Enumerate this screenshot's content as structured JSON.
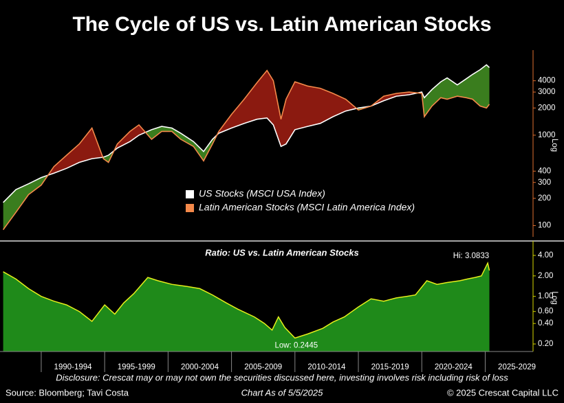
{
  "title": "The Cycle of US vs. Latin American Stocks",
  "chart_data": [
    {
      "type": "line",
      "x": [
        1987.0,
        1988,
        1989,
        1990,
        1991,
        1992,
        1993,
        1994,
        1994.9,
        1995.3,
        1996,
        1997,
        1997.7,
        1998.7,
        1999.5,
        2000.3,
        2001,
        2002,
        2002.8,
        2003.5,
        2004,
        2005,
        2006,
        2007,
        2007.8,
        2008.3,
        2008.9,
        2009.3,
        2010,
        2011,
        2012,
        2013,
        2014,
        2015,
        2016,
        2017,
        2018,
        2019,
        2020,
        2020.2,
        2020.8,
        2021.5,
        2022,
        2022.8,
        2023.5,
        2024,
        2024.6,
        2025.1,
        2025.33
      ],
      "series": [
        {
          "name": "US Stocks (MSCI USA Index)",
          "color": "#ffffff",
          "values": [
            180,
            250,
            290,
            340,
            380,
            430,
            500,
            550,
            570,
            600,
            720,
            850,
            1000,
            1150,
            1250,
            1200,
            1050,
            850,
            660,
            900,
            1050,
            1200,
            1350,
            1500,
            1550,
            1300,
            750,
            800,
            1150,
            1250,
            1350,
            1600,
            1850,
            2000,
            2100,
            2400,
            2700,
            2800,
            3000,
            2600,
            3200,
            3900,
            4300,
            3600,
            4200,
            4700,
            5300,
            6000,
            5600
          ]
        },
        {
          "name": "Latin American Stocks (MSCI Latin America Index)",
          "color": "#f4894a",
          "values": [
            90,
            140,
            220,
            280,
            450,
            600,
            800,
            1200,
            550,
            500,
            800,
            1100,
            1300,
            900,
            1100,
            1100,
            900,
            750,
            520,
            800,
            1100,
            1700,
            2500,
            3800,
            5200,
            4000,
            1500,
            2500,
            3900,
            3500,
            3300,
            2900,
            2500,
            1900,
            2100,
            2700,
            2900,
            3000,
            2900,
            1600,
            2100,
            2600,
            2500,
            2700,
            2600,
            2500,
            2100,
            2000,
            2200
          ]
        }
      ],
      "above_color": "#3a7d1e",
      "below_color": "#8b1a10",
      "xlim": [
        1986.75,
        2028.5
      ],
      "ylim": [
        75,
        8000
      ],
      "yticks": [
        100,
        200,
        300,
        400,
        1000,
        2000,
        3000,
        4000
      ],
      "log_scale": true,
      "y_scale_label": "Log",
      "axis_color": "#e07030"
    },
    {
      "type": "area",
      "title": "Ratio: US vs. Latin American Stocks",
      "x": [
        1987,
        1988,
        1989,
        1990,
        1991,
        1992,
        1993,
        1994,
        1995,
        1995.8,
        1996.5,
        1997.3,
        1998.4,
        1999.2,
        2000.3,
        2001.5,
        2002.5,
        2003.5,
        2004.6,
        2005.5,
        2006.8,
        2007.6,
        2008.2,
        2008.7,
        2009.2,
        2010,
        2011,
        2012.2,
        2013,
        2013.9,
        2015,
        2016,
        2017,
        2018,
        2018.8,
        2019.5,
        2020.4,
        2021.2,
        2022,
        2023,
        2023.6,
        2024.2,
        2024.7,
        2025.2,
        2025.33
      ],
      "values": [
        2.3,
        1.8,
        1.3,
        1.0,
        0.85,
        0.75,
        0.6,
        0.43,
        0.75,
        0.55,
        0.8,
        1.1,
        1.9,
        1.7,
        1.5,
        1.4,
        1.3,
        1.05,
        0.8,
        0.65,
        0.5,
        0.4,
        0.32,
        0.5,
        0.35,
        0.2445,
        0.28,
        0.34,
        0.42,
        0.5,
        0.7,
        0.92,
        0.85,
        0.95,
        1.0,
        1.05,
        1.7,
        1.5,
        1.6,
        1.7,
        1.8,
        1.9,
        2.0,
        3.0833,
        2.4
      ],
      "color": "#1f8a1a",
      "line_color": "#e6f01a",
      "xlim": [
        1986.75,
        2028.5
      ],
      "ylim": [
        0.155,
        5.8
      ],
      "yticks": [
        {
          "value": 4,
          "label": "4.00"
        },
        {
          "value": 2,
          "label": "2.00"
        },
        {
          "value": 1,
          "label": "1.00"
        },
        {
          "value": 0.6,
          "label": "0.60"
        },
        {
          "value": 0.4,
          "label": "0.40"
        },
        {
          "value": 0.2,
          "label": "0.20"
        }
      ],
      "xticks": [
        {
          "value": 1992.5,
          "label": "1990-1994"
        },
        {
          "value": 1997.5,
          "label": "1995-1999"
        },
        {
          "value": 2002.5,
          "label": "2000-2004"
        },
        {
          "value": 2007.5,
          "label": "2005-2009"
        },
        {
          "value": 2012.5,
          "label": "2010-2014"
        },
        {
          "value": 2017.5,
          "label": "2015-2019"
        },
        {
          "value": 2022.5,
          "label": "2020-2024"
        },
        {
          "value": 2027.5,
          "label": "2025-2029"
        }
      ],
      "log_scale": true,
      "y_scale_label": "Log",
      "axis_color": "#d8d800",
      "annotations": [
        "Hi: 3.0833",
        "Low: 0.2445"
      ]
    }
  ],
  "footer": {
    "disclosure": "Disclosure: Crescat may or may not own the securities discussed here, investing involves risk including risk of loss",
    "source": "Source: Bloomberg; Tavi Costa",
    "as_of": "Chart As of 5/5/2025",
    "copyright": "© 2025 Crescat Capital LLC"
  }
}
